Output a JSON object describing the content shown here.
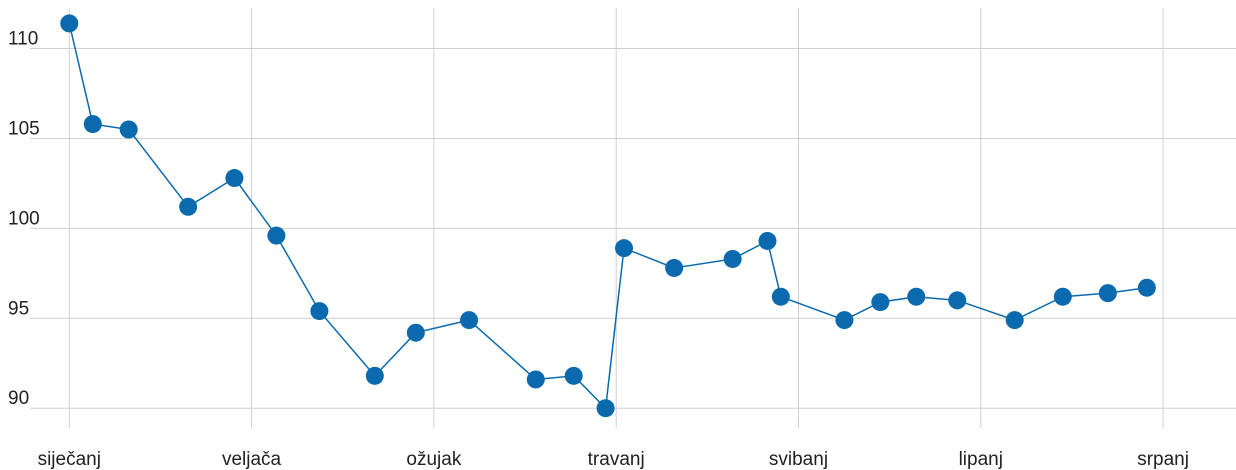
{
  "chart_data": {
    "type": "line",
    "x": [
      0,
      0.129,
      0.326,
      0.652,
      0.906,
      1.136,
      1.372,
      1.676,
      1.901,
      2.193,
      2.559,
      2.767,
      2.942,
      3.043,
      3.318,
      3.639,
      3.83,
      3.903,
      4.252,
      4.449,
      4.646,
      4.871,
      5.186,
      5.45,
      5.697,
      5.911
    ],
    "series": [
      {
        "color": "#0a6aad",
        "values": [
          111.4,
          105.8,
          105.5,
          101.2,
          102.8,
          99.6,
          95.4,
          91.8,
          94.2,
          94.9,
          91.6,
          91.8,
          90.0,
          98.9,
          97.8,
          98.3,
          99.3,
          96.2,
          94.9,
          95.9,
          96.2,
          96.0,
          94.9,
          96.2,
          96.4,
          96.7
        ]
      }
    ],
    "xlim": [
      -0.38,
      6.4
    ],
    "xticks": [
      {
        "value": 0,
        "label": "siječanj"
      },
      {
        "value": 1,
        "label": "veljača"
      },
      {
        "value": 2,
        "label": "ožujak"
      },
      {
        "value": 3,
        "label": "travanj"
      },
      {
        "value": 4,
        "label": "svibanj"
      },
      {
        "value": 5,
        "label": "lipanj"
      },
      {
        "value": 6,
        "label": "srpanj"
      }
    ],
    "ylim": [
      88.9,
      112.7
    ],
    "yticks": [
      90,
      95,
      100,
      105,
      110
    ],
    "grid": true
  }
}
